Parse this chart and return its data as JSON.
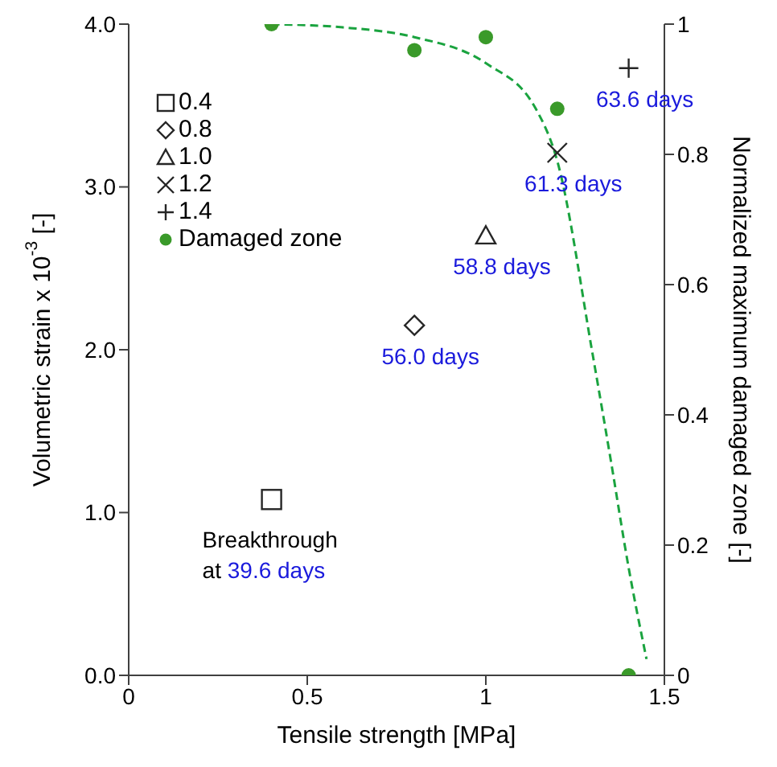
{
  "chart_data": {
    "type": "scatter",
    "xlabel": "Tensile strength [MPa]",
    "ylabel": "Volumetric strain x 10$^{-3}$ [-]",
    "y2label": "Normalized maximum damaged zone [-]",
    "xlim": [
      0,
      1.5
    ],
    "xticks": [
      0,
      0.5,
      1,
      1.5
    ],
    "ylim": [
      0,
      4
    ],
    "yticks": [
      {
        "value": 0,
        "label": "0.0"
      },
      {
        "value": 1,
        "label": "1.0"
      },
      {
        "value": 2,
        "label": "2.0"
      },
      {
        "value": 3,
        "label": "3.0"
      },
      {
        "value": 4,
        "label": "4.0"
      }
    ],
    "y2lim": [
      0,
      1
    ],
    "y2ticks": [
      0,
      0.2,
      0.4,
      0.6,
      0.8,
      1
    ],
    "legend": "top left",
    "series": [
      {
        "name": "0.4",
        "color": "#262626",
        "marker": "square",
        "x": [
          0.4
        ],
        "values": [
          1.08
        ]
      },
      {
        "name": "0.8",
        "color": "#262626",
        "marker": "diamond",
        "x": [
          0.8
        ],
        "values": [
          2.15
        ]
      },
      {
        "name": "1.0",
        "color": "#262626",
        "marker": "triangle",
        "x": [
          1.0
        ],
        "values": [
          2.7
        ]
      },
      {
        "name": "1.2",
        "color": "#262626",
        "marker": "cross",
        "x": [
          1.2
        ],
        "values": [
          3.21
        ]
      },
      {
        "name": "1.4",
        "color": "#262626",
        "marker": "plus",
        "x": [
          1.4
        ],
        "values": [
          3.73
        ]
      },
      {
        "name": "Damaged zone",
        "color": "#3a9a2a",
        "marker": "circle",
        "axis": "y2",
        "x": [
          0.4,
          0.8,
          1.0,
          1.2,
          1.4
        ],
        "values": [
          1,
          0.96,
          0.98,
          0.87,
          0
        ]
      },
      {
        "type": "line",
        "color": "#1aa33f",
        "line_style": "dashed",
        "marker": "none",
        "axis": "y2",
        "x": [
          0.4,
          0.6,
          0.8,
          1.0,
          1.14,
          1.2,
          1.3,
          1.35,
          1.4,
          1.45
        ],
        "values": [
          1,
          0.995,
          0.98,
          0.94,
          0.87,
          0.79,
          0.49,
          0.33,
          0.165,
          0.025
        ]
      }
    ],
    "annotations": [
      {
        "text": "63.6 days",
        "x": 1.4,
        "y": 3.73
      },
      {
        "text": "61.3 days",
        "x": 1.2,
        "y": 3.21
      },
      {
        "text": "58.8 days",
        "x": 1.0,
        "y": 2.7
      },
      {
        "text": "56.0 days",
        "x": 0.8,
        "y": 2.15
      },
      {
        "text": "Breakthrough at 39.6 days",
        "x": 0.4,
        "y": 1.08
      }
    ]
  }
}
